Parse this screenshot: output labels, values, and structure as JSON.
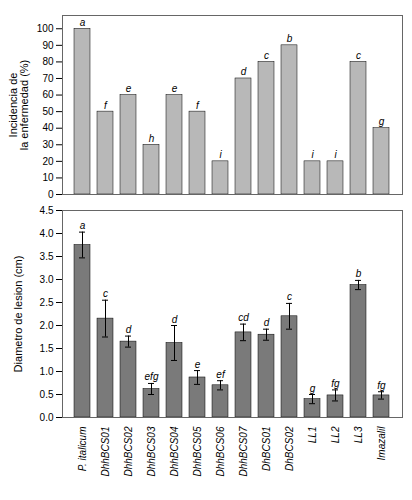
{
  "chart_data": [
    {
      "type": "bar",
      "categories": [
        "P. italicum",
        "DhhBCS01",
        "DhhBCS02",
        "DhhBCS03",
        "DhhBCS04",
        "DhhBCS05",
        "DhhBCS06",
        "DhhBCS07",
        "DhBCS01",
        "DhBCS02",
        "LL1",
        "LL2",
        "LL3",
        "Imazalil"
      ],
      "values": [
        100,
        50,
        60,
        30,
        60,
        50,
        20,
        70,
        80,
        90,
        20,
        20,
        80,
        40
      ],
      "letters": [
        "a",
        "f",
        "e",
        "h",
        "e",
        "f",
        "i",
        "d",
        "c",
        "b",
        "i",
        "i",
        "c",
        "g"
      ],
      "color": "#b8b8b8",
      "ylabel": "Incidencia de\nla enfermedad (%)",
      "ylim": [
        0,
        108
      ],
      "yticks": [
        0,
        10,
        20,
        30,
        40,
        50,
        60,
        70,
        80,
        90,
        100
      ],
      "tick_labels": "y",
      "grid": false
    },
    {
      "type": "bar",
      "categories": [
        "P. italicum",
        "DhhBCS01",
        "DhhBCS02",
        "DhhBCS03",
        "DhhBCS04",
        "DhhBCS05",
        "DhhBCS06",
        "DhhBCS07",
        "DhBCS01",
        "DhBCS02",
        "LL1",
        "LL2",
        "LL3",
        "Imazalil"
      ],
      "values": [
        3.75,
        2.15,
        1.65,
        0.62,
        1.62,
        0.87,
        0.7,
        1.85,
        1.8,
        2.2,
        0.4,
        0.48,
        2.88,
        0.48
      ],
      "errors": [
        0.28,
        0.4,
        0.12,
        0.12,
        0.38,
        0.15,
        0.1,
        0.18,
        0.12,
        0.28,
        0.1,
        0.12,
        0.1,
        0.08
      ],
      "letters": [
        "a",
        "c",
        "d",
        "efg",
        "d",
        "e",
        "ef",
        "cd",
        "d",
        "c",
        "g",
        "fg",
        "b",
        "fg"
      ],
      "color": "#7a7a7a",
      "ylabel": "Diametro de lesion (cm)",
      "ylim": [
        0,
        4.5
      ],
      "yticks": [
        {
          "value": 0,
          "label": "0.0"
        },
        0.5,
        {
          "value": 1.0,
          "label": "1.0"
        },
        1.5,
        {
          "value": 2.0,
          "label": "2.0"
        },
        2.5,
        {
          "value": 3.0,
          "label": "3.0"
        },
        3.5,
        {
          "value": 4.0,
          "label": "4.0"
        },
        4.5
      ],
      "grid": false
    }
  ]
}
